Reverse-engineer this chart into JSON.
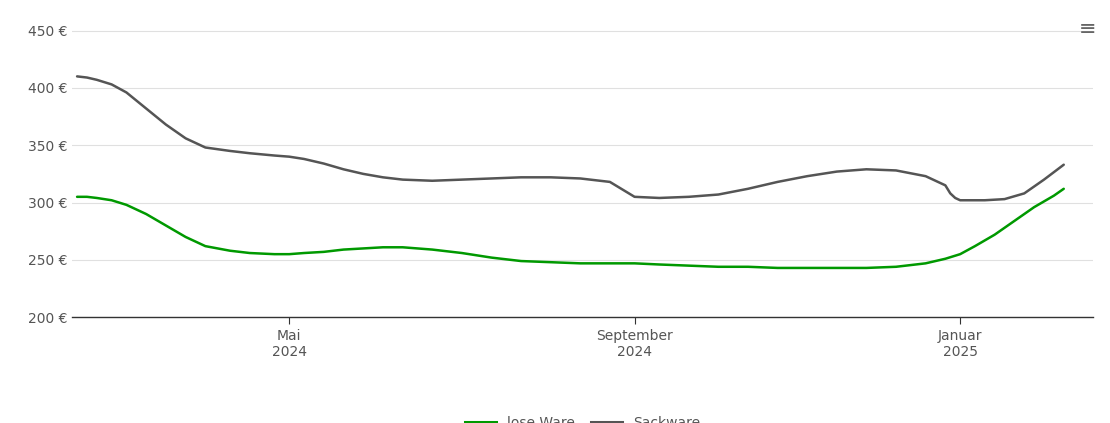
{
  "background_color": "#ffffff",
  "grid_color": "#e0e0e0",
  "ylim": [
    200,
    460
  ],
  "yticks": [
    200,
    250,
    300,
    350,
    400,
    450
  ],
  "lose_ware_color": "#009900",
  "sackware_color": "#555555",
  "line_width": 1.8,
  "legend_lose": "lose Ware",
  "legend_sack": "Sackware",
  "x_tick_labels": [
    [
      "Mai\n2024",
      0.215
    ],
    [
      "September\n2024",
      0.565
    ],
    [
      "Januar\n2025",
      0.895
    ]
  ],
  "xlim": [
    -0.005,
    1.03
  ],
  "lose_ware_x": [
    0.0,
    0.01,
    0.02,
    0.035,
    0.05,
    0.07,
    0.09,
    0.11,
    0.13,
    0.155,
    0.175,
    0.2,
    0.215,
    0.23,
    0.25,
    0.27,
    0.29,
    0.31,
    0.33,
    0.36,
    0.39,
    0.42,
    0.45,
    0.48,
    0.51,
    0.54,
    0.565,
    0.59,
    0.62,
    0.65,
    0.68,
    0.71,
    0.74,
    0.77,
    0.8,
    0.83,
    0.86,
    0.88,
    0.895,
    0.91,
    0.93,
    0.95,
    0.97,
    0.99,
    1.0
  ],
  "lose_ware_y": [
    305,
    305,
    304,
    302,
    298,
    290,
    280,
    270,
    262,
    258,
    256,
    255,
    255,
    256,
    257,
    259,
    260,
    261,
    261,
    259,
    256,
    252,
    249,
    248,
    247,
    247,
    247,
    246,
    245,
    244,
    244,
    243,
    243,
    243,
    243,
    244,
    247,
    251,
    255,
    262,
    272,
    284,
    296,
    306,
    312
  ],
  "sackware_x": [
    0.0,
    0.01,
    0.02,
    0.035,
    0.05,
    0.07,
    0.09,
    0.11,
    0.13,
    0.155,
    0.175,
    0.2,
    0.215,
    0.23,
    0.25,
    0.27,
    0.29,
    0.31,
    0.33,
    0.36,
    0.39,
    0.42,
    0.45,
    0.48,
    0.51,
    0.54,
    0.565,
    0.59,
    0.62,
    0.65,
    0.68,
    0.71,
    0.74,
    0.77,
    0.8,
    0.83,
    0.86,
    0.88,
    0.885,
    0.89,
    0.895,
    0.905,
    0.92,
    0.94,
    0.96,
    0.98,
    1.0
  ],
  "sackware_y": [
    410,
    409,
    407,
    403,
    396,
    382,
    368,
    356,
    348,
    345,
    343,
    341,
    340,
    338,
    334,
    329,
    325,
    322,
    320,
    319,
    320,
    321,
    322,
    322,
    321,
    318,
    305,
    304,
    305,
    307,
    312,
    318,
    323,
    327,
    329,
    328,
    323,
    315,
    308,
    304,
    302,
    302,
    302,
    303,
    308,
    320,
    333
  ],
  "menu_icon_color": "#666666",
  "tick_label_color": "#555555",
  "tick_label_fontsize": 10
}
